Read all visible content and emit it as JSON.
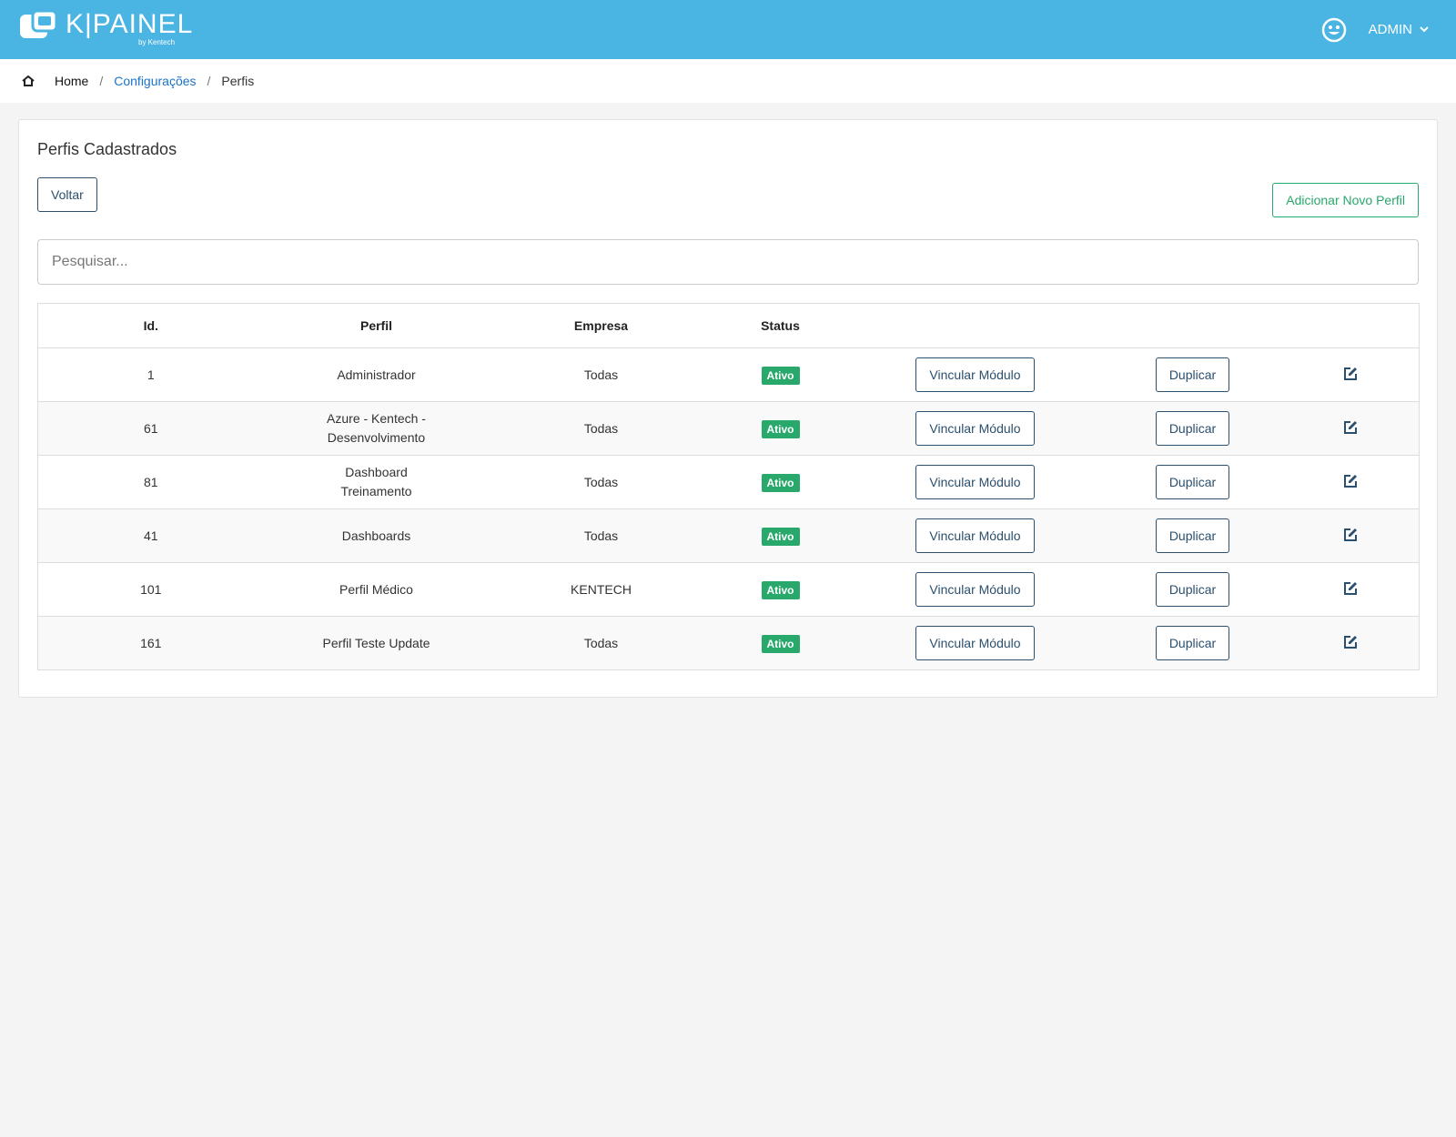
{
  "header": {
    "logo": "K|PAINEL",
    "logo_sub": "by Kentech",
    "user": "ADMIN"
  },
  "breadcrumb": [
    "Home",
    "Configurações",
    "Perfis"
  ],
  "card": {
    "title": "Perfis Cadastrados",
    "back_button": "Voltar",
    "add_button": "Adicionar Novo Perfil",
    "search_placeholder": "Pesquisar..."
  },
  "table": {
    "headers": [
      "Id.",
      "Perfil",
      "Empresa",
      "Status"
    ],
    "actions": {
      "link": "Vincular Módulo",
      "duplicate": "Duplicar"
    },
    "rows": [
      [
        "1",
        "Administrador",
        "Todas",
        "Ativo"
      ],
      [
        "61",
        "Azure - Kentech - Desenvolvimento",
        "Todas",
        "Ativo"
      ],
      [
        "81",
        "Dashboard Treinamento",
        "Todas",
        "Ativo"
      ],
      [
        "41",
        "Dashboards",
        "Todas",
        "Ativo"
      ],
      [
        "101",
        "Perfil Médico",
        "KENTECH",
        "Ativo"
      ],
      [
        "161",
        "Perfil Teste Update",
        "Todas",
        "Ativo"
      ]
    ]
  }
}
